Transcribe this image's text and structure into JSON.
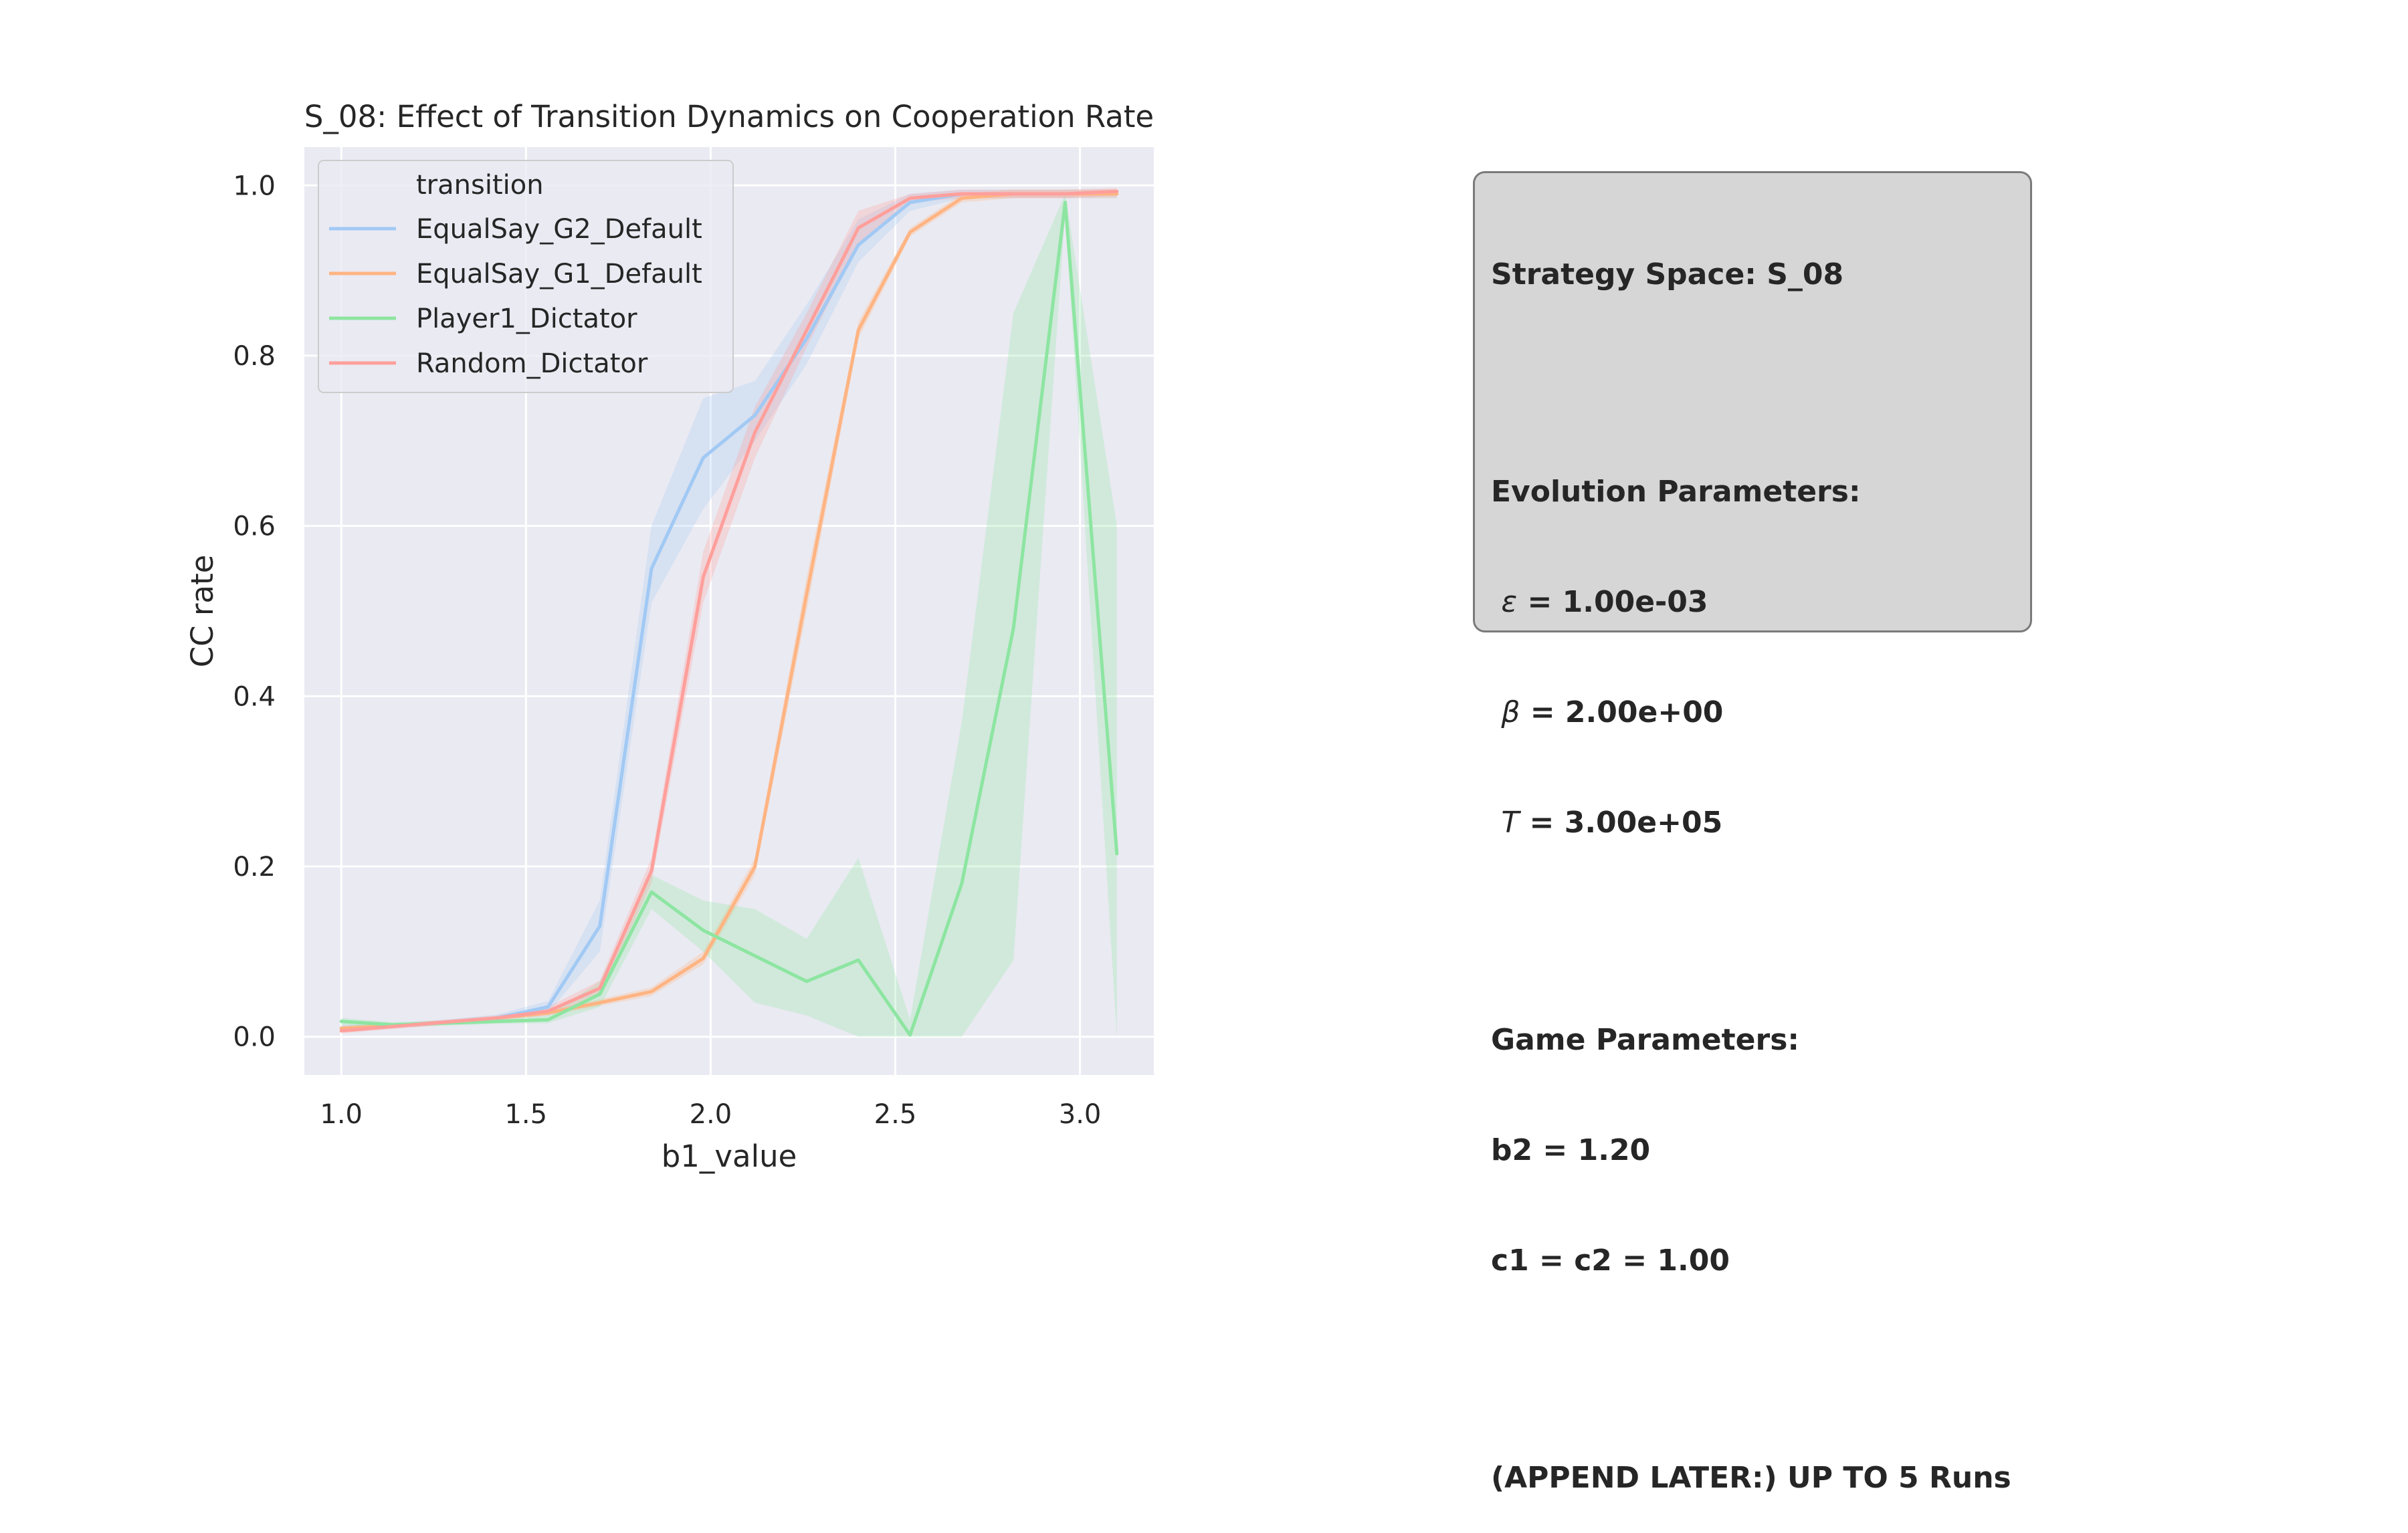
{
  "chart_data": {
    "type": "line",
    "title": "S_08: Effect of Transition Dynamics on Cooperation Rate",
    "xlabel": "b1_value",
    "ylabel": "CC rate",
    "xlim": [
      0.9,
      3.2
    ],
    "ylim": [
      -0.045,
      1.045
    ],
    "xticks": [
      "1.0",
      "1.5",
      "2.0",
      "2.5",
      "3.0"
    ],
    "yticks": [
      "0.0",
      "0.2",
      "0.4",
      "0.6",
      "0.8",
      "1.0"
    ],
    "grid": true,
    "legend_title": "transition",
    "legend_position": "upper-left",
    "x": [
      1.0,
      1.14,
      1.28,
      1.42,
      1.56,
      1.7,
      1.84,
      1.98,
      2.12,
      2.26,
      2.4,
      2.54,
      2.68,
      2.82,
      2.96,
      3.1
    ],
    "series": [
      {
        "name": "EqualSay_G2_Default",
        "color": "#a1c9f4",
        "values": [
          0.01,
          0.013,
          0.017,
          0.022,
          0.035,
          0.13,
          0.55,
          0.68,
          0.73,
          0.82,
          0.93,
          0.98,
          0.99,
          0.99,
          0.99,
          0.99
        ],
        "lower": [
          0.006,
          0.01,
          0.014,
          0.019,
          0.028,
          0.1,
          0.51,
          0.62,
          0.7,
          0.79,
          0.91,
          0.97,
          0.985,
          0.985,
          0.985,
          0.985
        ],
        "upper": [
          0.014,
          0.016,
          0.02,
          0.026,
          0.042,
          0.16,
          0.6,
          0.75,
          0.77,
          0.86,
          0.96,
          0.99,
          0.995,
          0.995,
          0.995,
          0.995
        ]
      },
      {
        "name": "EqualSay_G1_Default",
        "color": "#ffb482",
        "values": [
          0.01,
          0.013,
          0.017,
          0.022,
          0.028,
          0.04,
          0.053,
          0.092,
          0.2,
          0.52,
          0.83,
          0.945,
          0.985,
          0.99,
          0.99,
          0.99
        ],
        "lower": [
          0.007,
          0.011,
          0.015,
          0.02,
          0.025,
          0.036,
          0.048,
          0.085,
          0.19,
          0.5,
          0.82,
          0.94,
          0.98,
          0.985,
          0.985,
          0.985
        ],
        "upper": [
          0.013,
          0.015,
          0.019,
          0.024,
          0.031,
          0.044,
          0.058,
          0.1,
          0.21,
          0.54,
          0.84,
          0.95,
          0.99,
          0.995,
          0.995,
          0.995
        ]
      },
      {
        "name": "Player1_Dictator",
        "color": "#8de5a1",
        "values": [
          0.018,
          0.014,
          0.016,
          0.018,
          0.02,
          0.05,
          0.17,
          0.125,
          0.095,
          0.065,
          0.09,
          0.002,
          0.18,
          0.48,
          0.98,
          0.215
        ],
        "lower": [
          0.014,
          0.011,
          0.013,
          0.015,
          0.016,
          0.035,
          0.15,
          0.1,
          0.04,
          0.025,
          0.0,
          0.0,
          0.0,
          0.09,
          0.97,
          0.0
        ],
        "upper": [
          0.022,
          0.017,
          0.019,
          0.021,
          0.025,
          0.065,
          0.19,
          0.16,
          0.15,
          0.115,
          0.21,
          0.02,
          0.37,
          0.85,
          0.99,
          0.6
        ]
      },
      {
        "name": "Random_Dictator",
        "color": "#ff9f9b",
        "values": [
          0.007,
          0.012,
          0.017,
          0.022,
          0.03,
          0.057,
          0.195,
          0.54,
          0.71,
          0.83,
          0.95,
          0.985,
          0.99,
          0.99,
          0.99,
          0.993
        ],
        "lower": [
          0.004,
          0.009,
          0.014,
          0.019,
          0.025,
          0.048,
          0.18,
          0.51,
          0.68,
          0.81,
          0.93,
          0.98,
          0.985,
          0.985,
          0.985,
          0.988
        ],
        "upper": [
          0.01,
          0.015,
          0.02,
          0.025,
          0.035,
          0.066,
          0.21,
          0.57,
          0.74,
          0.85,
          0.97,
          0.99,
          0.995,
          0.995,
          0.995,
          0.997
        ]
      }
    ]
  },
  "info_box": {
    "strategy_space": "Strategy Space: S_08",
    "evolution_header": "Evolution Parameters:",
    "epsilon_symbol": "ε",
    "epsilon_value": " = 1.00e-03",
    "beta_symbol": "β",
    "beta_value": " = 2.00e+00",
    "t_symbol": "T",
    "t_value": " = 3.00e+05",
    "game_header": "Game Parameters:",
    "b2": "b2 = 1.20",
    "c": "c1 = c2 = 1.00",
    "note": "(APPEND LATER:) UP TO 5 Runs"
  }
}
